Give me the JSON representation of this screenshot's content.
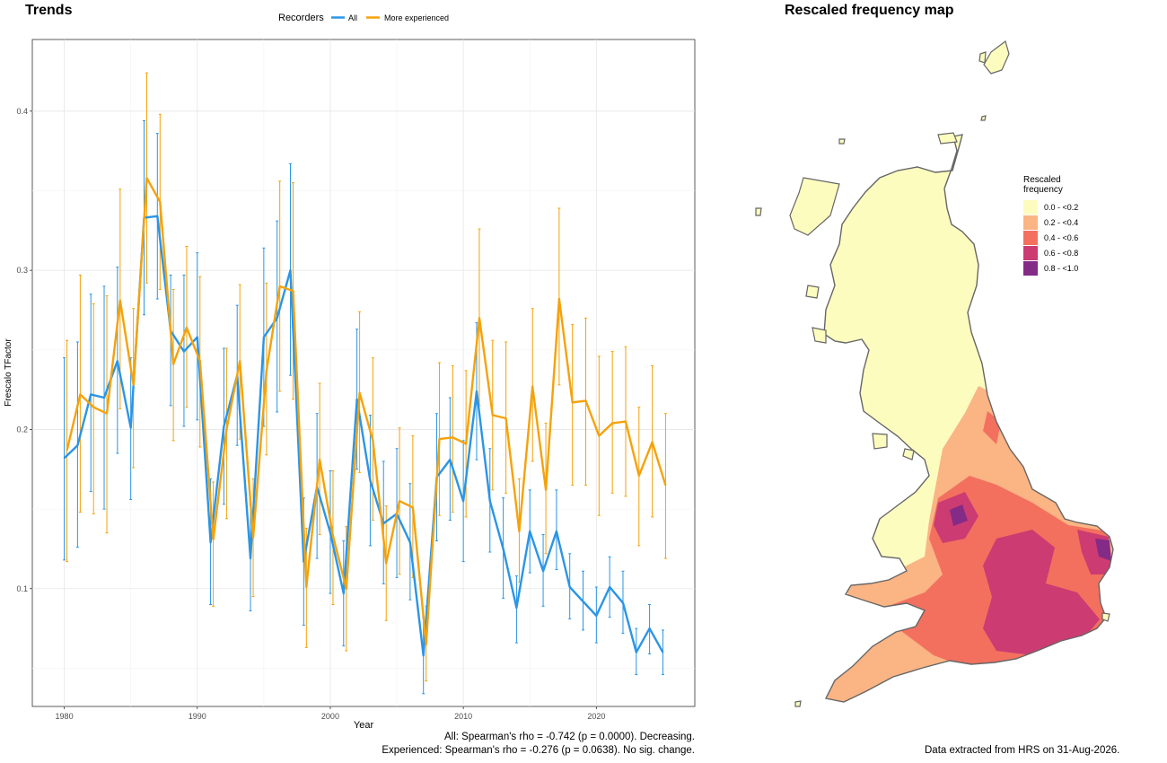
{
  "left_panel": {
    "title": "Trends",
    "footnote_line1": "All: Spearman's rho = -0.742 (p = 0.0000). Decreasing.",
    "footnote_line2": "Experienced: Spearman's rho = -0.276 (p = 0.0638). No sig. change."
  },
  "right_panel": {
    "title": "Rescaled frequency map",
    "footnote": "Data extracted from HRS on 31-Aug-2026.",
    "legend_title": [
      "Rescaled",
      "frequency"
    ],
    "legend": [
      {
        "label": "0.0 - <0.2",
        "color": "#fdfcbf"
      },
      {
        "label": "0.2 - <0.4",
        "color": "#fbb484"
      },
      {
        "label": "0.4 - <0.6",
        "color": "#f3705f"
      },
      {
        "label": "0.6 - <0.8",
        "color": "#cc3b72"
      },
      {
        "label": "0.8 - <1.0",
        "color": "#842b87"
      }
    ],
    "outline_color": "#666666"
  },
  "chart_data": {
    "type": "line",
    "title": "Trends",
    "xlabel": "Year",
    "ylabel": "Frescalo TFactor",
    "xlim": [
      1977.6,
      2027.4
    ],
    "ylim": [
      0.026,
      0.445
    ],
    "xticks": [
      1980,
      1990,
      2000,
      2010,
      2020
    ],
    "xtick_labels": [
      "1980",
      "1990",
      "2000",
      "2010",
      "2020"
    ],
    "yticks": [
      0.1,
      0.2,
      0.3,
      0.4
    ],
    "ytick_labels": [
      "0.1",
      "0.2",
      "0.3",
      "0.4"
    ],
    "grid": true,
    "legend_title": "Recorders",
    "legend_position": "top",
    "x": [
      1980,
      1981,
      1982,
      1983,
      1984,
      1985,
      1986,
      1987,
      1988,
      1989,
      1990,
      1991,
      1992,
      1993,
      1994,
      1995,
      1996,
      1997,
      1998,
      1999,
      2000,
      2001,
      2002,
      2003,
      2004,
      2005,
      2006,
      2007,
      2008,
      2009,
      2010,
      2011,
      2012,
      2013,
      2014,
      2015,
      2016,
      2017,
      2018,
      2019,
      2020,
      2021,
      2022,
      2023,
      2024,
      2025
    ],
    "series": [
      {
        "name": "All",
        "color": "#2b95e6",
        "values": [
          0.182,
          0.19,
          0.222,
          0.22,
          0.243,
          0.201,
          0.333,
          0.334,
          0.262,
          0.249,
          0.258,
          0.129,
          0.202,
          0.234,
          0.119,
          0.258,
          0.27,
          0.3,
          0.117,
          0.164,
          0.135,
          0.097,
          0.219,
          0.168,
          0.141,
          0.147,
          0.129,
          0.058,
          0.17,
          0.181,
          0.155,
          0.224,
          0.155,
          0.125,
          0.088,
          0.136,
          0.111,
          0.136,
          0.101,
          0.092,
          0.083,
          0.101,
          0.091,
          0.06,
          0.075,
          0.06
        ],
        "upper": [
          0.245,
          0.255,
          0.285,
          0.29,
          0.302,
          0.245,
          0.394,
          0.386,
          0.297,
          0.297,
          0.311,
          0.169,
          0.251,
          0.278,
          0.153,
          0.314,
          0.331,
          0.367,
          0.157,
          0.21,
          0.174,
          0.13,
          0.263,
          0.209,
          0.18,
          0.188,
          0.166,
          0.082,
          0.21,
          0.22,
          0.193,
          0.267,
          0.188,
          0.157,
          0.108,
          0.162,
          0.134,
          0.162,
          0.122,
          0.111,
          0.101,
          0.12,
          0.111,
          0.075,
          0.09,
          0.074
        ],
        "lower": [
          0.118,
          0.126,
          0.161,
          0.15,
          0.185,
          0.156,
          0.272,
          0.282,
          0.215,
          0.202,
          0.206,
          0.09,
          0.153,
          0.19,
          0.086,
          0.202,
          0.211,
          0.234,
          0.077,
          0.119,
          0.097,
          0.064,
          0.175,
          0.127,
          0.103,
          0.107,
          0.093,
          0.034,
          0.13,
          0.143,
          0.117,
          0.181,
          0.123,
          0.094,
          0.066,
          0.11,
          0.089,
          0.112,
          0.081,
          0.074,
          0.066,
          0.082,
          0.072,
          0.046,
          0.059,
          0.046
        ]
      },
      {
        "name": "More experienced",
        "color": "#f5a20a",
        "values": [
          0.187,
          0.222,
          0.214,
          0.21,
          0.281,
          0.228,
          0.358,
          0.343,
          0.241,
          0.264,
          0.243,
          0.131,
          0.2,
          0.243,
          0.132,
          0.237,
          0.29,
          0.287,
          0.101,
          0.181,
          0.133,
          0.1,
          0.223,
          0.193,
          0.116,
          0.155,
          0.151,
          0.065,
          0.194,
          0.195,
          0.191,
          0.27,
          0.209,
          0.207,
          0.136,
          0.227,
          0.162,
          0.282,
          0.217,
          0.218,
          0.196,
          0.204,
          0.205,
          0.171,
          0.192,
          0.165
        ],
        "upper": [
          0.256,
          0.297,
          0.279,
          0.284,
          0.351,
          0.276,
          0.424,
          0.398,
          0.288,
          0.315,
          0.296,
          0.167,
          0.251,
          0.291,
          0.169,
          0.292,
          0.356,
          0.355,
          0.138,
          0.229,
          0.174,
          0.139,
          0.274,
          0.245,
          0.152,
          0.201,
          0.196,
          0.089,
          0.242,
          0.24,
          0.237,
          0.326,
          0.256,
          0.255,
          0.169,
          0.276,
          0.204,
          0.339,
          0.266,
          0.27,
          0.246,
          0.249,
          0.252,
          0.214,
          0.24,
          0.21
        ],
        "lower": [
          0.117,
          0.148,
          0.147,
          0.135,
          0.213,
          0.176,
          0.292,
          0.288,
          0.193,
          0.214,
          0.189,
          0.089,
          0.144,
          0.194,
          0.095,
          0.184,
          0.224,
          0.219,
          0.063,
          0.134,
          0.09,
          0.061,
          0.173,
          0.143,
          0.08,
          0.109,
          0.107,
          0.042,
          0.146,
          0.148,
          0.145,
          0.215,
          0.162,
          0.16,
          0.104,
          0.18,
          0.122,
          0.228,
          0.165,
          0.165,
          0.146,
          0.16,
          0.158,
          0.127,
          0.145,
          0.119
        ]
      }
    ]
  }
}
